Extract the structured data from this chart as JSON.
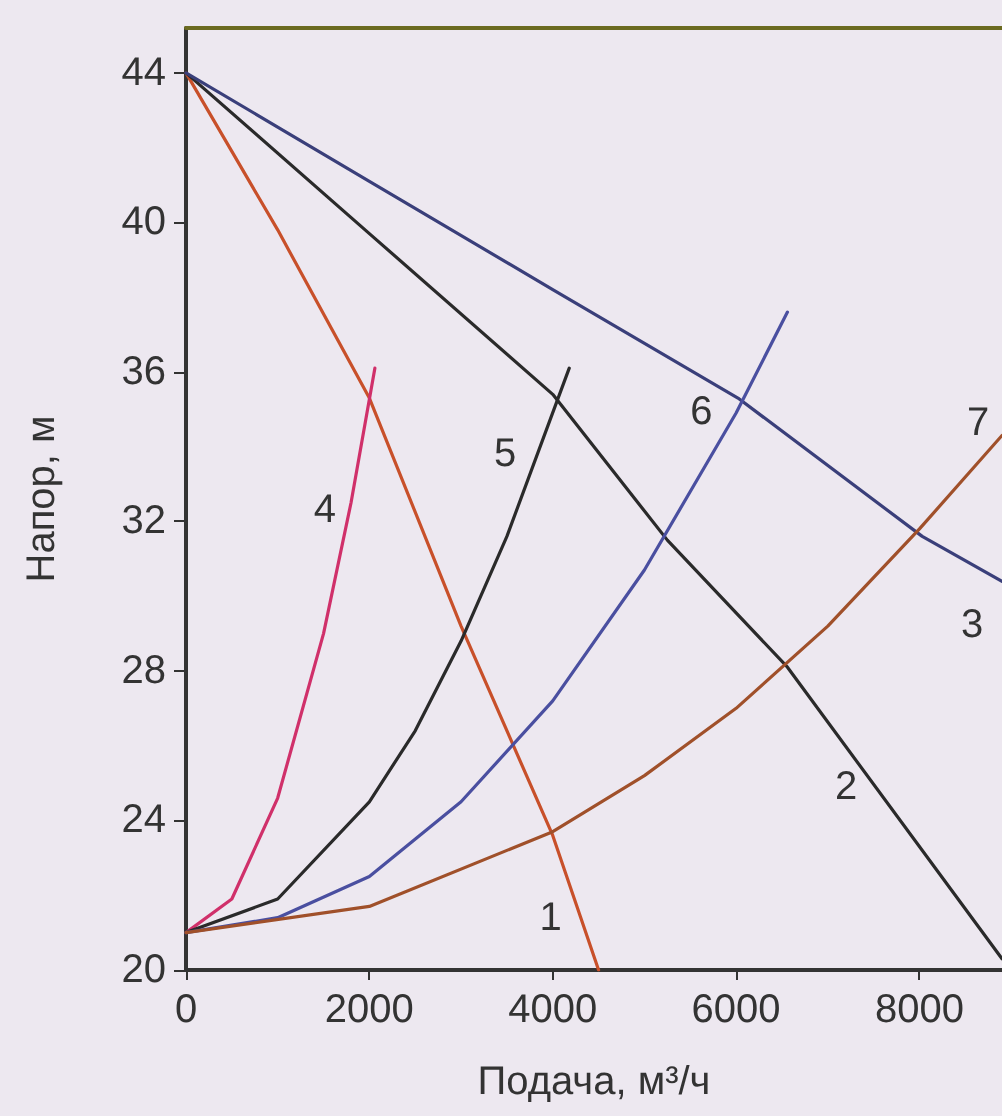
{
  "chart_data": {
    "type": "line",
    "xlabel": "Подача, м³/ч",
    "ylabel": "Напор, м",
    "xlim": [
      0,
      8900
    ],
    "xticks": [
      0,
      2000,
      4000,
      6000,
      8000
    ],
    "ylim": [
      20,
      45.2
    ],
    "yticks": [
      20,
      24,
      28,
      32,
      36,
      40,
      44
    ],
    "grid": false,
    "legend": false,
    "marker": "none",
    "line_style": "solid",
    "series": [
      {
        "name": "1",
        "color": "#c8502a",
        "x": [
          0,
          1000,
          2000,
          3000,
          4000,
          4500
        ],
        "values": [
          44,
          39.8,
          35.3,
          29.2,
          23.6,
          20
        ]
      },
      {
        "name": "2",
        "color": "#2a2a2a",
        "x": [
          0,
          2000,
          4000,
          5250,
          6560,
          8900
        ],
        "values": [
          44,
          39.7,
          35.4,
          31.5,
          28.1,
          20.3
        ]
      },
      {
        "name": "3",
        "color": "#3a3f7a",
        "x": [
          0,
          2000,
          4000,
          6020,
          8030,
          8900
        ],
        "values": [
          44,
          41.1,
          38.2,
          35.3,
          31.6,
          30.4
        ]
      },
      {
        "name": "4",
        "color": "#d0306a",
        "x": [
          0,
          500,
          1000,
          1500,
          1800,
          2060
        ],
        "values": [
          21,
          21.9,
          24.6,
          29.0,
          32.5,
          36.1
        ]
      },
      {
        "name": "5",
        "color": "#2a2a2a",
        "x": [
          0,
          1000,
          2000,
          2500,
          3000,
          3500,
          4180
        ],
        "values": [
          21,
          21.9,
          24.5,
          26.4,
          28.8,
          31.6,
          36.1
        ]
      },
      {
        "name": "6",
        "color": "#4a4fa0",
        "x": [
          0,
          1000,
          2000,
          3000,
          4000,
          5000,
          6000,
          6560
        ],
        "values": [
          21,
          21.4,
          22.5,
          24.5,
          27.2,
          30.7,
          34.9,
          37.6
        ]
      },
      {
        "name": "7",
        "color": "#a0502a",
        "x": [
          0,
          2000,
          4000,
          5000,
          6000,
          7000,
          8000,
          8900
        ],
        "values": [
          21,
          21.7,
          23.7,
          25.2,
          27.0,
          29.2,
          31.8,
          34.3
        ]
      }
    ]
  }
}
